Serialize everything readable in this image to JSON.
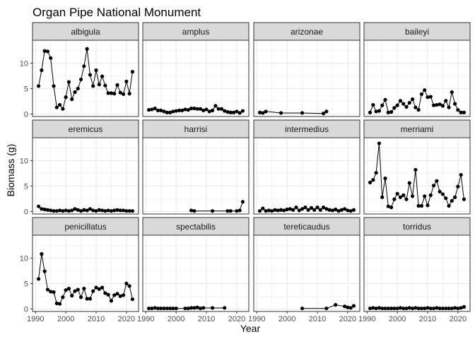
{
  "chart_data": {
    "type": "line",
    "title": "Organ Pipe National Monument",
    "xlabel": "Year",
    "ylabel": "Biomass (g)",
    "xlim": [
      1989,
      2024
    ],
    "ylim": [
      -0.5,
      14.5
    ],
    "xticks": [
      1990,
      2000,
      2010,
      2020
    ],
    "yticks": [
      0,
      5,
      10
    ],
    "grid": true,
    "panels": [
      {
        "name": "albigula",
        "x": [
          1991,
          1992,
          1993,
          1994,
          1995,
          1996,
          1997,
          1998,
          1999,
          2000,
          2001,
          2002,
          2003,
          2004,
          2005,
          2006,
          2007,
          2008,
          2009,
          2010,
          2011,
          2012,
          2013,
          2014,
          2015,
          2016,
          2017,
          2018,
          2019,
          2020,
          2021,
          2022
        ],
        "y": [
          5.5,
          8.6,
          12.4,
          12.3,
          11.0,
          5.5,
          1.3,
          1.8,
          1.0,
          3.3,
          6.3,
          2.9,
          4.3,
          5.0,
          6.8,
          9.4,
          12.8,
          7.7,
          5.5,
          8.6,
          5.8,
          7.4,
          5.6,
          4.1,
          4.1,
          4.0,
          5.7,
          4.2,
          3.9,
          6.4,
          4.0,
          8.3
        ]
      },
      {
        "name": "amplus",
        "x": [
          1991,
          1992,
          1993,
          1994,
          1995,
          1996,
          1997,
          1998,
          1999,
          2000,
          2001,
          2002,
          2003,
          2004,
          2005,
          2006,
          2007,
          2008,
          2009,
          2010,
          2011,
          2012,
          2013,
          2014,
          2015,
          2016,
          2017,
          2018,
          2019,
          2020,
          2021,
          2022
        ],
        "y": [
          0.8,
          0.9,
          1.1,
          0.7,
          0.7,
          0.5,
          0.3,
          0.3,
          0.5,
          0.6,
          0.7,
          0.7,
          0.9,
          0.8,
          1.1,
          1.1,
          1.0,
          1.0,
          0.7,
          0.9,
          0.5,
          0.7,
          1.6,
          1.0,
          1.0,
          0.6,
          0.4,
          0.3,
          0.3,
          0.5,
          0.2,
          0.6
        ]
      },
      {
        "name": "arizonae",
        "x": [
          1991,
          1992,
          1993,
          1998,
          2005,
          2012,
          2013
        ],
        "y": [
          0.3,
          0.2,
          0.5,
          0.2,
          0.2,
          0.1,
          0.5
        ]
      },
      {
        "name": "baileyi",
        "x": [
          1991,
          1992,
          1993,
          1994,
          1995,
          1996,
          1997,
          1998,
          1999,
          2000,
          2001,
          2002,
          2003,
          2004,
          2005,
          2006,
          2007,
          2008,
          2009,
          2010,
          2011,
          2012,
          2013,
          2014,
          2015,
          2016,
          2017,
          2018,
          2019,
          2020,
          2021,
          2022
        ],
        "y": [
          0.3,
          1.8,
          0.5,
          0.6,
          1.7,
          2.8,
          0.3,
          0.4,
          1.2,
          1.7,
          2.6,
          2.0,
          1.4,
          2.2,
          2.9,
          1.3,
          0.8,
          3.9,
          4.7,
          3.3,
          3.4,
          1.7,
          1.8,
          1.9,
          1.6,
          2.6,
          1.3,
          4.3,
          2.0,
          0.8,
          0.3,
          0.3
        ]
      },
      {
        "name": "eremicus",
        "x": [
          1991,
          1992,
          1993,
          1994,
          1995,
          1996,
          1997,
          1998,
          1999,
          2000,
          2001,
          2002,
          2003,
          2004,
          2005,
          2006,
          2007,
          2008,
          2009,
          2010,
          2011,
          2012,
          2013,
          2014,
          2015,
          2016,
          2017,
          2018,
          2019,
          2020,
          2021,
          2022
        ],
        "y": [
          1.0,
          0.5,
          0.4,
          0.3,
          0.2,
          0.1,
          0.1,
          0.2,
          0.1,
          0.2,
          0.1,
          0.2,
          0.5,
          0.3,
          0.1,
          0.3,
          0.2,
          0.5,
          0.2,
          0.1,
          0.3,
          0.2,
          0.1,
          0.2,
          0.1,
          0.2,
          0.3,
          0.2,
          0.2,
          0.1,
          0.1,
          0.1
        ]
      },
      {
        "name": "harrisi",
        "x": [
          2005,
          2006,
          2012,
          2017,
          2018,
          2020,
          2021,
          2022
        ],
        "y": [
          0.2,
          0.1,
          0.1,
          0.1,
          0.1,
          0.1,
          0.2,
          1.9
        ]
      },
      {
        "name": "intermedius",
        "x": [
          1991,
          1992,
          1993,
          1994,
          1995,
          1996,
          1997,
          1998,
          1999,
          2000,
          2001,
          2002,
          2003,
          2004,
          2005,
          2006,
          2007,
          2008,
          2009,
          2010,
          2011,
          2012,
          2013,
          2014,
          2015,
          2016,
          2017,
          2018,
          2019,
          2020,
          2021,
          2022
        ],
        "y": [
          0.1,
          0.6,
          0.1,
          0.2,
          0.1,
          0.3,
          0.2,
          0.3,
          0.2,
          0.4,
          0.5,
          0.3,
          0.8,
          0.2,
          0.5,
          0.8,
          0.3,
          0.7,
          0.3,
          0.8,
          0.3,
          0.8,
          0.5,
          0.3,
          0.2,
          0.4,
          0.1,
          0.3,
          0.5,
          0.2,
          0.1,
          0.3
        ]
      },
      {
        "name": "merriami",
        "x": [
          1991,
          1992,
          1993,
          1994,
          1995,
          1996,
          1997,
          1998,
          1999,
          2000,
          2001,
          2002,
          2003,
          2004,
          2005,
          2006,
          2007,
          2008,
          2009,
          2010,
          2011,
          2012,
          2013,
          2014,
          2015,
          2016,
          2017,
          2018,
          2019,
          2020,
          2021,
          2022
        ],
        "y": [
          5.7,
          6.2,
          7.6,
          13.4,
          2.8,
          6.5,
          1.0,
          0.8,
          2.4,
          3.5,
          2.8,
          3.2,
          2.4,
          5.6,
          3.0,
          8.2,
          1.1,
          1.1,
          3.0,
          1.2,
          3.2,
          5.1,
          6.0,
          3.9,
          3.4,
          2.6,
          1.1,
          2.1,
          2.8,
          4.9,
          7.2,
          2.4
        ]
      },
      {
        "name": "penicillatus",
        "x": [
          1991,
          1992,
          1993,
          1994,
          1995,
          1996,
          1997,
          1998,
          1999,
          2000,
          2001,
          2002,
          2003,
          2004,
          2005,
          2006,
          2007,
          2008,
          2009,
          2010,
          2011,
          2012,
          2013,
          2014,
          2015,
          2016,
          2017,
          2018,
          2019,
          2020,
          2021,
          2022
        ],
        "y": [
          5.9,
          10.8,
          7.4,
          3.8,
          3.4,
          3.3,
          1.1,
          1.0,
          2.3,
          3.7,
          4.0,
          2.6,
          3.5,
          3.8,
          2.3,
          4.0,
          2.0,
          2.0,
          3.5,
          4.2,
          3.9,
          4.2,
          3.1,
          2.8,
          1.6,
          2.7,
          3.0,
          2.5,
          2.7,
          5.0,
          4.5,
          1.9
        ]
      },
      {
        "name": "spectabilis",
        "x": [
          1991,
          1992,
          1993,
          1994,
          1995,
          1996,
          1997,
          1998,
          1999,
          2000,
          2003,
          2004,
          2005,
          2006,
          2007,
          2008,
          2009,
          2012,
          2016
        ],
        "y": [
          0.1,
          0.1,
          0.2,
          0.1,
          0.1,
          0.1,
          0.1,
          0.1,
          0.1,
          0.1,
          0.1,
          0.1,
          0.2,
          0.2,
          0.3,
          0.1,
          0.2,
          0.2,
          0.2
        ]
      },
      {
        "name": "tereticaudus",
        "x": [
          2005,
          2013,
          2016,
          2019,
          2020,
          2021,
          2022
        ],
        "y": [
          0.1,
          0.1,
          0.8,
          0.5,
          0.3,
          0.2,
          0.6
        ]
      },
      {
        "name": "torridus",
        "x": [
          1991,
          1992,
          1993,
          1994,
          1995,
          1996,
          1997,
          1998,
          1999,
          2000,
          2001,
          2002,
          2003,
          2004,
          2005,
          2006,
          2007,
          2008,
          2009,
          2010,
          2011,
          2012,
          2013,
          2014,
          2015,
          2016,
          2017,
          2018,
          2019,
          2020,
          2021,
          2022
        ],
        "y": [
          0.1,
          0.2,
          0.1,
          0.2,
          0.1,
          0.1,
          0.1,
          0.1,
          0.1,
          0.1,
          0.2,
          0.1,
          0.1,
          0.2,
          0.1,
          0.2,
          0.1,
          0.1,
          0.1,
          0.2,
          0.1,
          0.1,
          0.2,
          0.1,
          0.1,
          0.1,
          0.1,
          0.1,
          0.2,
          0.1,
          0.2,
          0.4
        ]
      }
    ],
    "colors": {
      "point": "#000000",
      "line": "#000000",
      "strip": "#d9d9d9",
      "panel_border": "#333333",
      "grid": "#ebebeb"
    }
  }
}
